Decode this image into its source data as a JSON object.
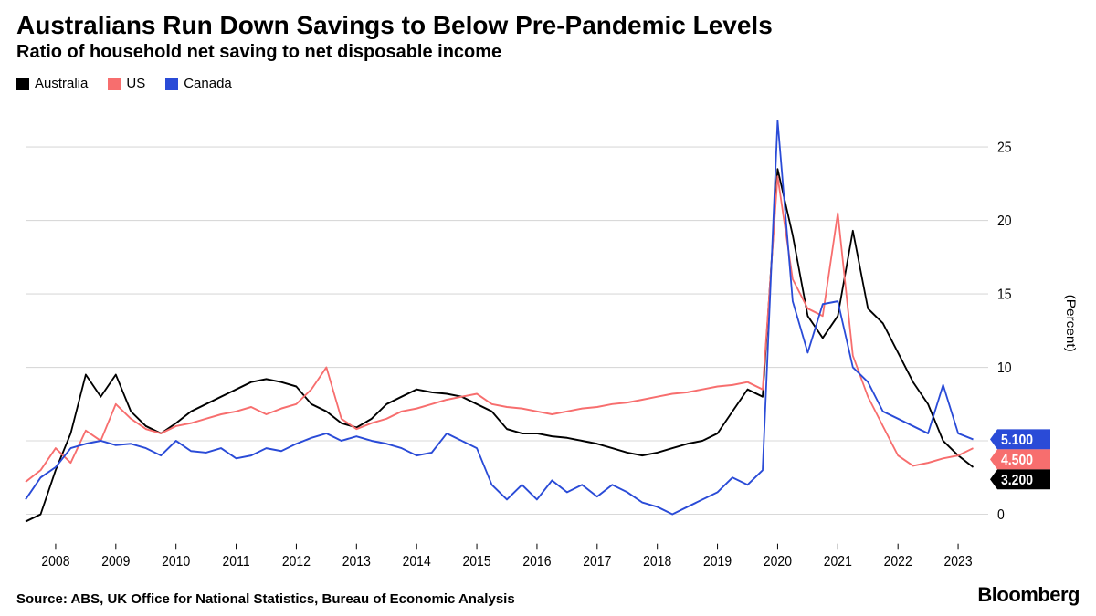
{
  "title": "Australians Run Down Savings to Below Pre-Pandemic Levels",
  "subtitle": "Ratio of household net saving to net disposable income",
  "source": "Source: ABS, UK Office for National Statistics, Bureau of Economic Analysis",
  "brand": "Bloomberg",
  "chart": {
    "type": "line",
    "background_color": "#ffffff",
    "grid_color": "#d9d9d9",
    "axis_color": "#666666",
    "axis_fontsize": 14,
    "title_fontsize": 28,
    "subtitle_fontsize": 20,
    "line_width": 1.8,
    "y_axis": {
      "label": "(Percent)",
      "label_fontsize": 14,
      "position": "right",
      "lim": [
        -2,
        28
      ],
      "ticks": [
        0,
        5,
        10,
        15,
        20,
        25
      ],
      "tick_labels": [
        "0",
        "5",
        "10",
        "15",
        "20",
        "25"
      ]
    },
    "x_axis": {
      "start": 2007.5,
      "end": 2023.5,
      "ticks": [
        2008,
        2009,
        2010,
        2011,
        2012,
        2013,
        2014,
        2015,
        2016,
        2017,
        2018,
        2019,
        2020,
        2021,
        2022,
        2023
      ],
      "tick_labels": [
        "2008",
        "2009",
        "2010",
        "2011",
        "2012",
        "2013",
        "2014",
        "2015",
        "2016",
        "2017",
        "2018",
        "2019",
        "2020",
        "2021",
        "2022",
        "2023"
      ]
    },
    "legend": {
      "position": "top-left",
      "items": [
        {
          "label": "Australia",
          "color": "#000000"
        },
        {
          "label": "US",
          "color": "#f76e6e"
        },
        {
          "label": "Canada",
          "color": "#2a4bd7"
        }
      ]
    },
    "series": [
      {
        "name": "Australia",
        "color": "#000000",
        "end_label": "3.200",
        "end_label_bg": "#000000",
        "end_label_fg": "#ffffff",
        "x": [
          2007.5,
          2007.75,
          2008.0,
          2008.25,
          2008.5,
          2008.75,
          2009.0,
          2009.25,
          2009.5,
          2009.75,
          2010.0,
          2010.25,
          2010.5,
          2010.75,
          2011.0,
          2011.25,
          2011.5,
          2011.75,
          2012.0,
          2012.25,
          2012.5,
          2012.75,
          2013.0,
          2013.25,
          2013.5,
          2013.75,
          2014.0,
          2014.25,
          2014.5,
          2014.75,
          2015.0,
          2015.25,
          2015.5,
          2015.75,
          2016.0,
          2016.25,
          2016.5,
          2016.75,
          2017.0,
          2017.25,
          2017.5,
          2017.75,
          2018.0,
          2018.25,
          2018.5,
          2018.75,
          2019.0,
          2019.25,
          2019.5,
          2019.75,
          2020.0,
          2020.25,
          2020.5,
          2020.75,
          2021.0,
          2021.25,
          2021.5,
          2021.75,
          2022.0,
          2022.25,
          2022.5,
          2022.75,
          2023.0,
          2023.25
        ],
        "y": [
          -0.5,
          0.0,
          3.0,
          5.5,
          9.5,
          8.0,
          9.5,
          7.0,
          6.0,
          5.5,
          6.2,
          7.0,
          7.5,
          8.0,
          8.5,
          9.0,
          9.2,
          9.0,
          8.7,
          7.5,
          7.0,
          6.2,
          5.9,
          6.5,
          7.5,
          8.0,
          8.5,
          8.3,
          8.2,
          8.0,
          7.5,
          7.0,
          5.8,
          5.5,
          5.5,
          5.3,
          5.2,
          5.0,
          4.8,
          4.5,
          4.2,
          4.0,
          4.2,
          4.5,
          4.8,
          5.0,
          5.5,
          7.0,
          8.5,
          8.0,
          23.5,
          19.0,
          13.5,
          12.0,
          13.5,
          19.3,
          14.0,
          13.0,
          11.0,
          9.0,
          7.5,
          5.0,
          4.0,
          3.2
        ]
      },
      {
        "name": "US",
        "color": "#f76e6e",
        "end_label": "4.500",
        "end_label_bg": "#f76e6e",
        "end_label_fg": "#ffffff",
        "x": [
          2007.5,
          2007.75,
          2008.0,
          2008.25,
          2008.5,
          2008.75,
          2009.0,
          2009.25,
          2009.5,
          2009.75,
          2010.0,
          2010.25,
          2010.5,
          2010.75,
          2011.0,
          2011.25,
          2011.5,
          2011.75,
          2012.0,
          2012.25,
          2012.5,
          2012.75,
          2013.0,
          2013.25,
          2013.5,
          2013.75,
          2014.0,
          2014.25,
          2014.5,
          2014.75,
          2015.0,
          2015.25,
          2015.5,
          2015.75,
          2016.0,
          2016.25,
          2016.5,
          2016.75,
          2017.0,
          2017.25,
          2017.5,
          2017.75,
          2018.0,
          2018.25,
          2018.5,
          2018.75,
          2019.0,
          2019.25,
          2019.5,
          2019.75,
          2020.0,
          2020.25,
          2020.5,
          2020.75,
          2021.0,
          2021.25,
          2021.5,
          2021.75,
          2022.0,
          2022.25,
          2022.5,
          2022.75,
          2023.0,
          2023.25
        ],
        "y": [
          2.2,
          3.0,
          4.5,
          3.5,
          5.7,
          5.0,
          7.5,
          6.5,
          5.8,
          5.5,
          6.0,
          6.2,
          6.5,
          6.8,
          7.0,
          7.3,
          6.8,
          7.2,
          7.5,
          8.5,
          10.0,
          6.5,
          5.8,
          6.2,
          6.5,
          7.0,
          7.2,
          7.5,
          7.8,
          8.0,
          8.2,
          7.5,
          7.3,
          7.2,
          7.0,
          6.8,
          7.0,
          7.2,
          7.3,
          7.5,
          7.6,
          7.8,
          8.0,
          8.2,
          8.3,
          8.5,
          8.7,
          8.8,
          9.0,
          8.5,
          23.0,
          16.0,
          14.0,
          13.5,
          20.5,
          10.8,
          8.0,
          6.0,
          4.0,
          3.3,
          3.5,
          3.8,
          4.0,
          4.5
        ]
      },
      {
        "name": "Canada",
        "color": "#2a4bd7",
        "end_label": "5.100",
        "end_label_bg": "#2a4bd7",
        "end_label_fg": "#ffffff",
        "x": [
          2007.5,
          2007.75,
          2008.0,
          2008.25,
          2008.5,
          2008.75,
          2009.0,
          2009.25,
          2009.5,
          2009.75,
          2010.0,
          2010.25,
          2010.5,
          2010.75,
          2011.0,
          2011.25,
          2011.5,
          2011.75,
          2012.0,
          2012.25,
          2012.5,
          2012.75,
          2013.0,
          2013.25,
          2013.5,
          2013.75,
          2014.0,
          2014.25,
          2014.5,
          2014.75,
          2015.0,
          2015.25,
          2015.5,
          2015.75,
          2016.0,
          2016.25,
          2016.5,
          2016.75,
          2017.0,
          2017.25,
          2017.5,
          2017.75,
          2018.0,
          2018.25,
          2018.5,
          2018.75,
          2019.0,
          2019.25,
          2019.5,
          2019.75,
          2020.0,
          2020.25,
          2020.5,
          2020.75,
          2021.0,
          2021.25,
          2021.5,
          2021.75,
          2022.0,
          2022.25,
          2022.5,
          2022.75,
          2023.0,
          2023.25
        ],
        "y": [
          1.0,
          2.5,
          3.2,
          4.5,
          4.8,
          5.0,
          4.7,
          4.8,
          4.5,
          4.0,
          5.0,
          4.3,
          4.2,
          4.5,
          3.8,
          4.0,
          4.5,
          4.3,
          4.8,
          5.2,
          5.5,
          5.0,
          5.3,
          5.0,
          4.8,
          4.5,
          4.0,
          4.2,
          5.5,
          5.0,
          4.5,
          2.0,
          1.0,
          2.0,
          1.0,
          2.3,
          1.5,
          2.0,
          1.2,
          2.0,
          1.5,
          0.8,
          0.5,
          0.0,
          0.5,
          1.0,
          1.5,
          2.5,
          2.0,
          3.0,
          26.8,
          14.5,
          11.0,
          14.3,
          14.5,
          10.0,
          9.0,
          7.0,
          6.5,
          6.0,
          5.5,
          8.8,
          5.5,
          5.1
        ]
      }
    ]
  }
}
